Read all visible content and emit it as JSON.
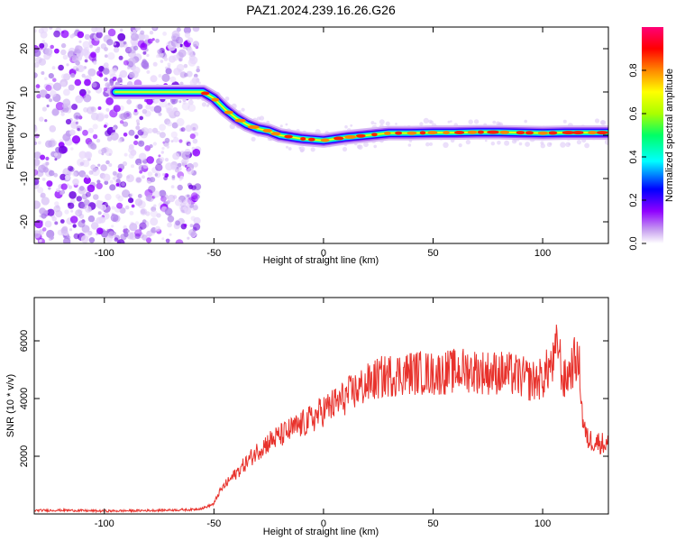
{
  "title": "PAZ1.2024.239.16.26.G26",
  "chart_data": [
    {
      "type": "heatmap",
      "xlabel": "Height of straight line (km)",
      "ylabel": "Frequency (Hz)",
      "xlim": [
        -132,
        130
      ],
      "ylim": [
        -25,
        25
      ],
      "xticks": [
        -100,
        -50,
        0,
        50,
        100
      ],
      "yticks": [
        -20,
        -10,
        0,
        10,
        20
      ],
      "grid": false,
      "colorbar": {
        "label": "Normalized spectral amplitude",
        "range": [
          0,
          1
        ],
        "ticks": [
          "0.0",
          "0.2",
          "0.4",
          "0.6",
          "0.8"
        ],
        "colormap": [
          "#ffffff",
          "#c9a3f0",
          "#8f00ff",
          "#0000ff",
          "#00ffff",
          "#00ff66",
          "#aaff00",
          "#ffff00",
          "#ff8800",
          "#ff0000",
          "#ff0077"
        ]
      },
      "ridge": {
        "x": [
          -95,
          -80,
          -70,
          -60,
          -55,
          -50,
          -45,
          -40,
          -35,
          -30,
          -25,
          -20,
          -10,
          0,
          10,
          20,
          30,
          40,
          50,
          60,
          70,
          80,
          90,
          100,
          110,
          120,
          130
        ],
        "y": [
          10,
          10,
          10,
          10,
          10,
          8.5,
          6,
          4,
          2.5,
          1.5,
          1,
          0,
          -0.8,
          -1.2,
          -0.5,
          0,
          0.5,
          0.5,
          0.6,
          0.6,
          0.7,
          0.7,
          0.6,
          0.5,
          0.6,
          0.6,
          0.6
        ]
      },
      "noise_region": [
        -132,
        -57
      ]
    },
    {
      "type": "line",
      "xlabel": "Height of straight line (km)",
      "ylabel": "SNR (10 * v/v)",
      "xlim": [
        -132,
        130
      ],
      "ylim": [
        0,
        7500
      ],
      "xticks": [
        -100,
        -50,
        0,
        50,
        100
      ],
      "yticks": [
        2000,
        4000,
        6000
      ],
      "color": "#e8322c",
      "grid": false,
      "series": [
        {
          "x": [
            -132,
            -120,
            -100,
            -80,
            -60,
            -55,
            -50,
            -48,
            -45,
            -40,
            -35,
            -30,
            -25,
            -20,
            -15,
            -10,
            -5,
            0,
            5,
            10,
            15,
            20,
            25,
            30,
            35,
            40,
            45,
            50,
            55,
            60,
            65,
            70,
            75,
            80,
            85,
            90,
            95,
            100,
            103,
            105,
            107,
            109,
            110,
            112,
            114,
            115,
            117,
            118,
            120,
            125,
            130
          ],
          "y": [
            120,
            130,
            100,
            120,
            150,
            200,
            350,
            700,
            1000,
            1400,
            1800,
            2200,
            2500,
            2700,
            2900,
            3100,
            3300,
            3600,
            3800,
            4050,
            4300,
            4500,
            4700,
            4800,
            4850,
            4900,
            4900,
            4850,
            4900,
            4950,
            5000,
            4950,
            4900,
            4900,
            4850,
            4750,
            4600,
            4700,
            5100,
            5200,
            6000,
            4700,
            4600,
            4900,
            5200,
            5400,
            5000,
            3500,
            2600,
            2500,
            2400
          ]
        }
      ]
    }
  ]
}
